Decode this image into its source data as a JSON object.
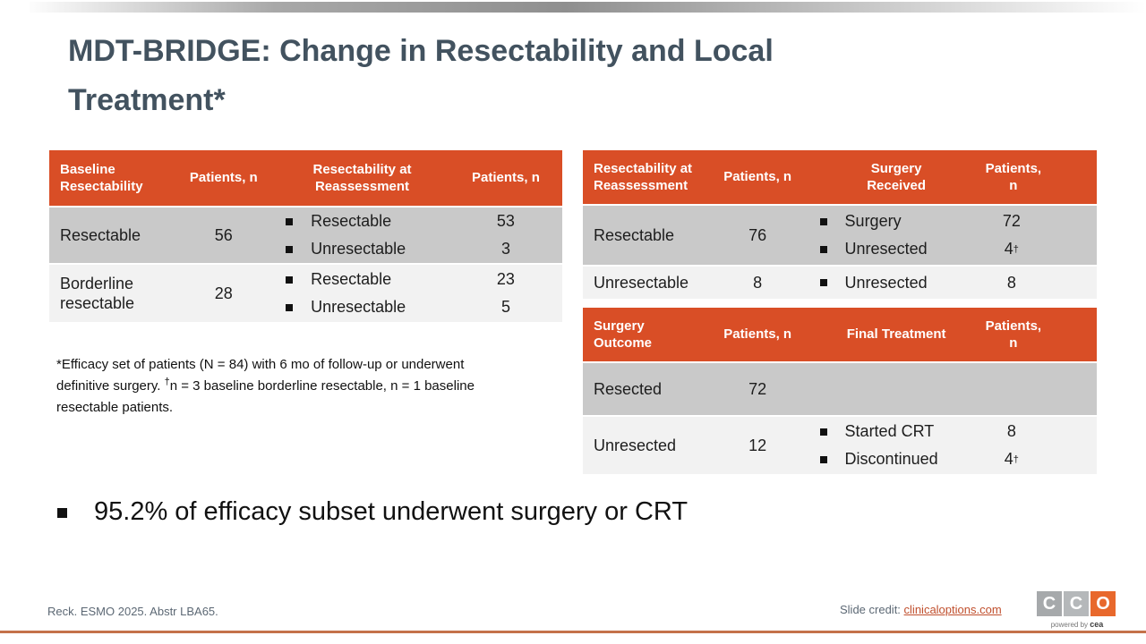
{
  "title": {
    "line1": "MDT-BRIDGE: Change in Resectability and Local",
    "line2": "Treatment*"
  },
  "tables": {
    "left": {
      "headers": [
        "Baseline Resectability",
        "Patients, n",
        "Resectability at Reassessment",
        "Patients, n"
      ],
      "rows": [
        {
          "label": "Resectable",
          "n": "56",
          "items": [
            {
              "label": "Resectable",
              "n": "53"
            },
            {
              "label": "Unresectable",
              "n": "3"
            }
          ]
        },
        {
          "label": "Borderline resectable",
          "n": "28",
          "items": [
            {
              "label": "Resectable",
              "n": "23"
            },
            {
              "label": "Unresectable",
              "n": "5"
            }
          ]
        }
      ]
    },
    "right_top": {
      "headers": [
        "Resectability at Reassessment",
        "Patients, n",
        "Surgery Received",
        "Patients, n"
      ],
      "rows": [
        {
          "label": "Resectable",
          "n": "76",
          "items": [
            {
              "label": "Surgery",
              "n": "72"
            },
            {
              "label": "Unresected",
              "n": "4",
              "sup": "†"
            }
          ]
        },
        {
          "label": "Unresectable",
          "n": "8",
          "items": [
            {
              "label": "Unresected",
              "n": "8"
            }
          ]
        }
      ]
    },
    "right_bottom": {
      "headers": [
        "Surgery Outcome",
        "Patients, n",
        "Final Treatment",
        "Patients, n"
      ],
      "rows": [
        {
          "label": "Resected",
          "n": "72",
          "items": []
        },
        {
          "label": "Unresected",
          "n": "12",
          "items": [
            {
              "label": "Started CRT",
              "n": "8"
            },
            {
              "label": "Discontinued",
              "n": "4",
              "sup": "†"
            }
          ]
        }
      ]
    }
  },
  "footnote": {
    "line1": "*Efficacy set of patients (N = 84) with 6 mo of follow-up or underwent",
    "line2_pre": "definitive surgery. ",
    "dagger": "†",
    "line2_post": "n = 3 baseline borderline resectable, n = 1 baseline",
    "line3": "resectable patients."
  },
  "key_finding": "95.2% of efficacy subset underwent surgery or CRT",
  "footer": {
    "reference": "Reck. ESMO 2025. Abstr LBA65.",
    "credit_label": "Slide credit: ",
    "credit_link": "clinicaloptions.com",
    "logo": {
      "letter1": "C",
      "letter2": "C",
      "letter3": "O",
      "tagline_prefix": "powered by ",
      "tagline_brand": "cea"
    }
  },
  "colors": {
    "header_orange": "#D94E26",
    "row_dark_gray": "#C9C9C9",
    "row_light_gray": "#F2F2F2",
    "title_slate": "#42525F",
    "link_orange": "#C04F2D",
    "footer_rule_orange": "#C4714A",
    "logo_orange": "#E8682C"
  }
}
